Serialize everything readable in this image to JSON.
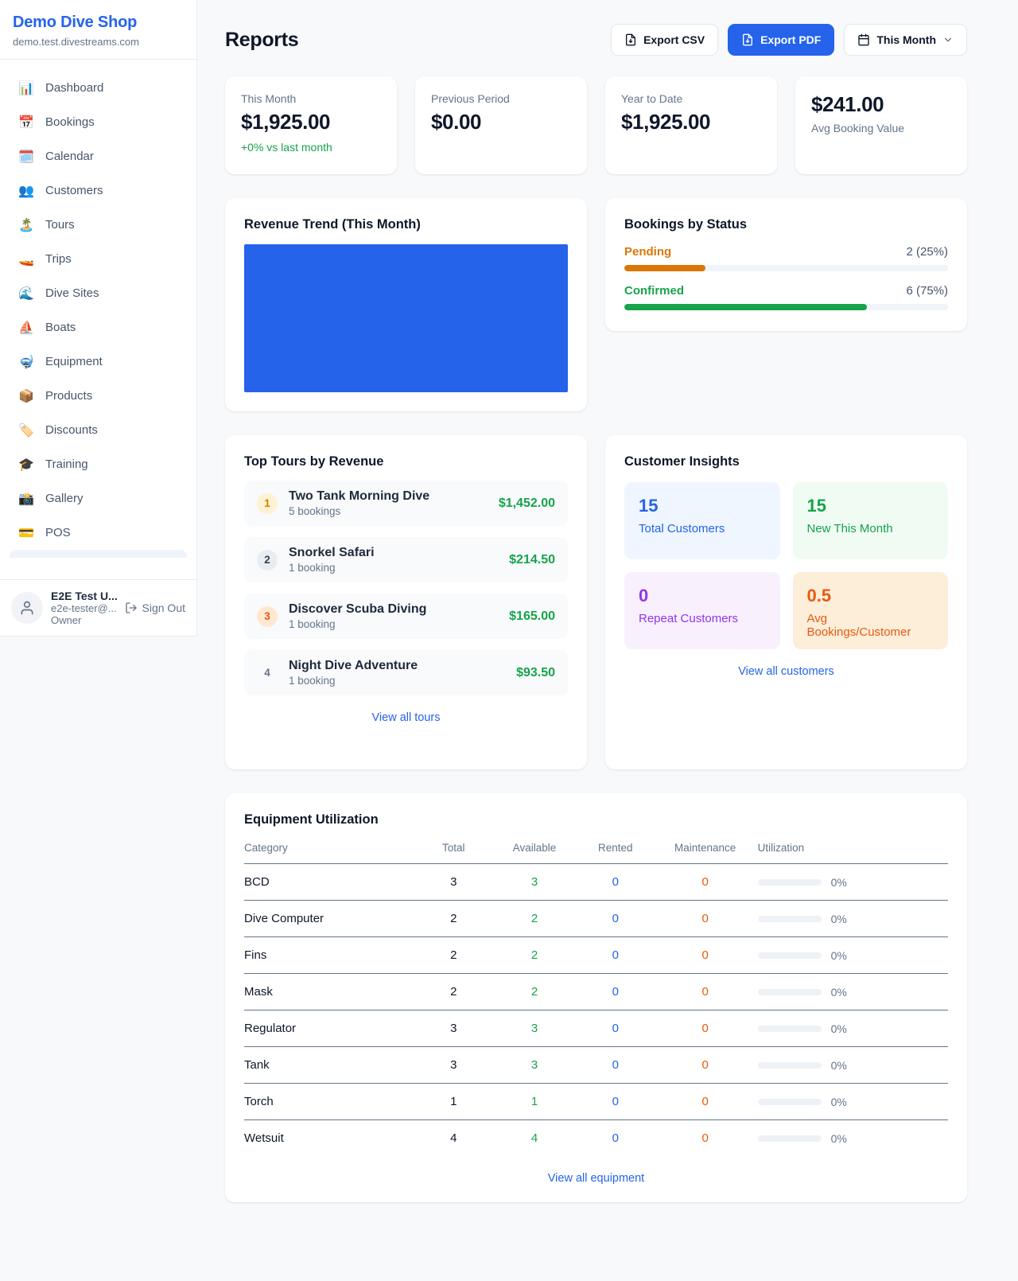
{
  "colors": {
    "accent_blue": "#2563eb",
    "success_green": "#16a34a",
    "pending_orange": "#d97706",
    "maintenance_orange": "#ea580c",
    "repeat_purple": "#9333ea",
    "text_dark": "#0f172a",
    "text_gray": "#64748b"
  },
  "sidebar": {
    "title": "Demo Dive Shop",
    "subdomain": "demo.test.divestreams.com",
    "items": [
      {
        "icon": "📊",
        "icon_name": "bar-chart-icon",
        "label": "Dashboard"
      },
      {
        "icon": "📅",
        "icon_name": "calendar-date-icon",
        "label": "Bookings"
      },
      {
        "icon": "🗓️",
        "icon_name": "calendar-pad-icon",
        "label": "Calendar"
      },
      {
        "icon": "👥",
        "icon_name": "people-icon",
        "label": "Customers"
      },
      {
        "icon": "🏝️",
        "icon_name": "island-icon",
        "label": "Tours"
      },
      {
        "icon": "🚤",
        "icon_name": "speedboat-icon",
        "label": "Trips"
      },
      {
        "icon": "🌊",
        "icon_name": "wave-icon",
        "label": "Dive Sites"
      },
      {
        "icon": "⛵",
        "icon_name": "sailboat-icon",
        "label": "Boats"
      },
      {
        "icon": "🤿",
        "icon_name": "diving-mask-icon",
        "label": "Equipment"
      },
      {
        "icon": "📦",
        "icon_name": "package-icon",
        "label": "Products"
      },
      {
        "icon": "🏷️",
        "icon_name": "tag-icon",
        "label": "Discounts"
      },
      {
        "icon": "🎓",
        "icon_name": "graduation-cap-icon",
        "label": "Training"
      },
      {
        "icon": "📸",
        "icon_name": "camera-icon",
        "label": "Gallery"
      },
      {
        "icon": "💳",
        "icon_name": "credit-card-icon",
        "label": "POS"
      }
    ],
    "user": {
      "name": "E2E Test U...",
      "email": "e2e-tester@...",
      "role": "Owner",
      "sign_out_label": "Sign Out"
    }
  },
  "header": {
    "title": "Reports",
    "export_csv_label": "Export CSV",
    "export_pdf_label": "Export PDF",
    "period_label": "This Month"
  },
  "stats": [
    {
      "label": "This Month",
      "value": "$1,925.00",
      "delta": "+0% vs last month",
      "value_first": false
    },
    {
      "label": "Previous Period",
      "value": "$0.00",
      "value_first": false
    },
    {
      "label": "Year to Date",
      "value": "$1,925.00",
      "value_first": false
    },
    {
      "label": "Avg Booking Value",
      "value": "$241.00",
      "value_first": true
    }
  ],
  "revenue_trend": {
    "title": "Revenue Trend (This Month)"
  },
  "chart_data": {
    "type": "bar",
    "title": "Revenue Trend (This Month)",
    "categories": [
      "This Month"
    ],
    "values": [
      1925.0
    ],
    "bar_color": "#2563eb",
    "axes_visible": false,
    "note_layout": "single full-width solid bar, no axis labels shown"
  },
  "bookings_by_status": {
    "title": "Bookings by Status",
    "rows": [
      {
        "label": "Pending",
        "count_label": "2 (25%)",
        "count": 2,
        "pct": 25,
        "color": "#d97706"
      },
      {
        "label": "Confirmed",
        "count_label": "6 (75%)",
        "count": 6,
        "pct": 75,
        "color": "#16a34a"
      }
    ]
  },
  "top_tours": {
    "title": "Top Tours by Revenue",
    "items": [
      {
        "rank": 1,
        "name": "Two Tank Morning Dive",
        "bookings": "5 bookings",
        "amount": "$1,452.00"
      },
      {
        "rank": 2,
        "name": "Snorkel Safari",
        "bookings": "1 booking",
        "amount": "$214.50"
      },
      {
        "rank": 3,
        "name": "Discover Scuba Diving",
        "bookings": "1 booking",
        "amount": "$165.00"
      },
      {
        "rank": 4,
        "name": "Night Dive Adventure",
        "bookings": "1 booking",
        "amount": "$93.50"
      }
    ],
    "view_all_label": "View all tours"
  },
  "customer_insights": {
    "title": "Customer Insights",
    "tiles": [
      {
        "value": "15",
        "label": "Total Customers",
        "variant": "blue"
      },
      {
        "value": "15",
        "label": "New This Month",
        "variant": "green"
      },
      {
        "value": "0",
        "label": "Repeat Customers",
        "variant": "purple"
      },
      {
        "value": "0.5",
        "label": "Avg Bookings/Customer",
        "variant": "orange"
      }
    ],
    "view_all_label": "View all customers"
  },
  "equipment": {
    "title": "Equipment Utilization",
    "columns": [
      "Category",
      "Total",
      "Available",
      "Rented",
      "Maintenance",
      "Utilization"
    ],
    "rows": [
      {
        "category": "BCD",
        "total": 3,
        "available": 3,
        "rented": 0,
        "maintenance": 0,
        "utilization": "0%",
        "utilization_pct": 0
      },
      {
        "category": "Dive Computer",
        "total": 2,
        "available": 2,
        "rented": 0,
        "maintenance": 0,
        "utilization": "0%",
        "utilization_pct": 0
      },
      {
        "category": "Fins",
        "total": 2,
        "available": 2,
        "rented": 0,
        "maintenance": 0,
        "utilization": "0%",
        "utilization_pct": 0
      },
      {
        "category": "Mask",
        "total": 2,
        "available": 2,
        "rented": 0,
        "maintenance": 0,
        "utilization": "0%",
        "utilization_pct": 0
      },
      {
        "category": "Regulator",
        "total": 3,
        "available": 3,
        "rented": 0,
        "maintenance": 0,
        "utilization": "0%",
        "utilization_pct": 0
      },
      {
        "category": "Tank",
        "total": 3,
        "available": 3,
        "rented": 0,
        "maintenance": 0,
        "utilization": "0%",
        "utilization_pct": 0
      },
      {
        "category": "Torch",
        "total": 1,
        "available": 1,
        "rented": 0,
        "maintenance": 0,
        "utilization": "0%",
        "utilization_pct": 0
      },
      {
        "category": "Wetsuit",
        "total": 4,
        "available": 4,
        "rented": 0,
        "maintenance": 0,
        "utilization": "0%",
        "utilization_pct": 0
      }
    ],
    "view_all_label": "View all equipment"
  }
}
